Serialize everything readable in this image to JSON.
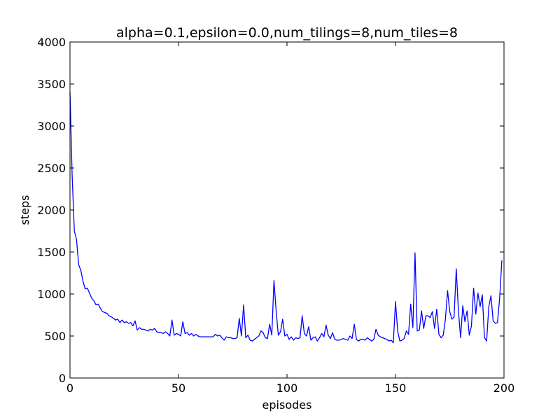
{
  "chart_data": {
    "type": "line",
    "title": "alpha=0.1,epsilon=0.0,num_tilings=8,num_tiles=8",
    "xlabel": "episodes",
    "ylabel": "steps",
    "xlim": [
      0,
      200
    ],
    "ylim": [
      0,
      4000
    ],
    "xticks": [
      0,
      50,
      100,
      150,
      200
    ],
    "yticks": [
      0,
      500,
      1000,
      1500,
      2000,
      2500,
      3000,
      3500,
      4000
    ],
    "grid": false,
    "line_color": "#0000ff",
    "series": [
      {
        "values": [
          3400,
          2400,
          1750,
          1650,
          1350,
          1280,
          1150,
          1060,
          1070,
          1010,
          950,
          920,
          870,
          880,
          830,
          790,
          780,
          770,
          740,
          730,
          710,
          690,
          700,
          660,
          690,
          660,
          670,
          650,
          660,
          620,
          680,
          570,
          600,
          580,
          580,
          570,
          560,
          580,
          570,
          590,
          550,
          540,
          540,
          530,
          550,
          530,
          500,
          690,
          510,
          530,
          520,
          500,
          670,
          530,
          540,
          510,
          530,
          500,
          520,
          500,
          490,
          490,
          490,
          490,
          490,
          490,
          490,
          520,
          500,
          510,
          480,
          450,
          490,
          480,
          480,
          470,
          470,
          480,
          710,
          500,
          870,
          480,
          510,
          450,
          440,
          460,
          480,
          500,
          560,
          540,
          480,
          470,
          640,
          510,
          1160,
          800,
          510,
          550,
          700,
          500,
          520,
          460,
          490,
          450,
          480,
          470,
          480,
          740,
          530,
          500,
          610,
          450,
          480,
          490,
          440,
          480,
          530,
          490,
          630,
          510,
          470,
          540,
          460,
          450,
          450,
          460,
          470,
          460,
          450,
          500,
          470,
          640,
          460,
          440,
          460,
          460,
          450,
          480,
          460,
          440,
          460,
          580,
          510,
          490,
          480,
          470,
          460,
          440,
          450,
          420,
          910,
          560,
          440,
          450,
          470,
          560,
          520,
          880,
          600,
          1490,
          560,
          570,
          800,
          590,
          740,
          740,
          720,
          790,
          590,
          820,
          520,
          480,
          510,
          700,
          1040,
          790,
          700,
          730,
          1300,
          800,
          480,
          860,
          670,
          800,
          510,
          620,
          1070,
          760,
          1010,
          850,
          990,
          480,
          440,
          850,
          980,
          680,
          650,
          660,
          950,
          1400
        ]
      }
    ]
  }
}
